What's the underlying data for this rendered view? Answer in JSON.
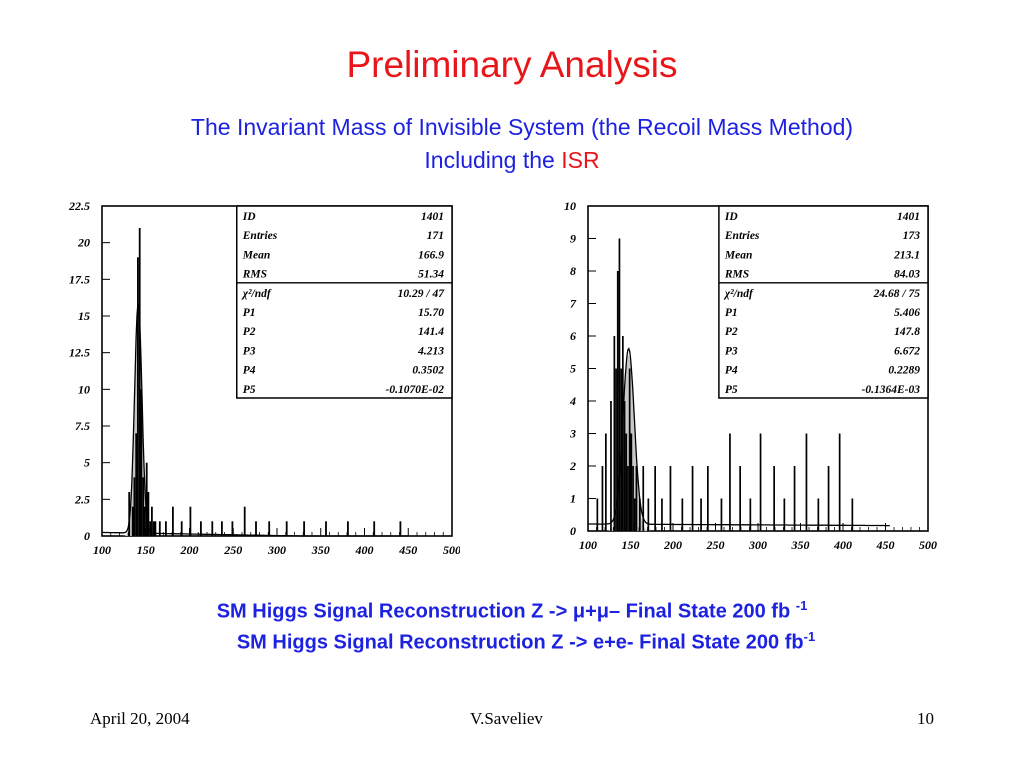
{
  "slide": {
    "title": "Preliminary Analysis",
    "subtitle_line1": "The Invariant Mass of Invisible System (the Recoil Mass Method)",
    "subtitle_line2_prefix": "Including the ",
    "subtitle_line2_highlight": "ISR",
    "caption1_prefix": "SM Higgs Signal Reconstruction Z -> ",
    "caption1_mumu": "μ+μ–",
    "caption1_suffix": " Final State 200 fb ",
    "caption1_sup": "-1",
    "caption2_prefix": "SM Higgs Signal Reconstruction Z -> e+e- Final State 200 fb",
    "caption2_sup": "-1",
    "footer_date": "April 20, 2004",
    "footer_author": "V.Saveliev",
    "footer_page": "10"
  },
  "colors": {
    "title": "#e8161b",
    "subtitle": "#1d22e0",
    "fill": "#c8c8c8",
    "line": "#000000"
  },
  "chart_data": [
    {
      "type": "bar",
      "xlim": [
        100,
        500
      ],
      "ylim": [
        0,
        22.5
      ],
      "xticks": [
        "100",
        "150",
        "200",
        "250",
        "300",
        "350",
        "400",
        "450",
        "500"
      ],
      "yticks": [
        "0",
        "2.5",
        "5",
        "7.5",
        "10",
        "12.5",
        "15",
        "17.5",
        "20",
        "22.5"
      ],
      "stats": [
        {
          "label": "ID",
          "value": "1401"
        },
        {
          "label": "Entries",
          "value": "171"
        },
        {
          "label": "Mean",
          "value": "166.9"
        },
        {
          "label": "RMS",
          "value": "51.34"
        },
        {
          "label": "χ²/ndf",
          "value": "10.29  /  47"
        },
        {
          "label": "P1",
          "value": "15.70"
        },
        {
          "label": "P2",
          "value": "141.4"
        },
        {
          "label": "P3",
          "value": "4.213"
        },
        {
          "label": "P4",
          "value": "0.3502"
        },
        {
          "label": "P5",
          "value": "-0.1070E-02"
        }
      ],
      "fit": {
        "amp": 15.7,
        "mean": 141.4,
        "sigma": 4.213,
        "c0": 0.3502,
        "c1": -0.00107,
        "xmax": 450
      },
      "hist": [
        [
          130,
          3
        ],
        [
          134,
          2
        ],
        [
          136,
          4
        ],
        [
          138,
          7
        ],
        [
          140,
          19
        ],
        [
          142,
          21
        ],
        [
          144,
          10
        ],
        [
          146,
          4
        ],
        [
          148,
          2
        ],
        [
          150,
          5
        ],
        [
          152,
          3
        ],
        [
          154,
          1
        ],
        [
          156,
          2
        ],
        [
          158,
          1
        ],
        [
          160,
          1
        ],
        [
          165,
          1
        ],
        [
          172,
          1
        ],
        [
          180,
          2
        ],
        [
          190,
          1
        ],
        [
          200,
          2
        ],
        [
          212,
          1
        ],
        [
          225,
          1
        ],
        [
          236,
          1
        ],
        [
          248,
          1
        ],
        [
          262,
          2
        ],
        [
          275,
          1
        ],
        [
          290,
          1
        ],
        [
          310,
          1
        ],
        [
          330,
          1
        ],
        [
          355,
          1
        ],
        [
          380,
          1
        ],
        [
          410,
          1
        ],
        [
          440,
          1
        ]
      ]
    },
    {
      "type": "bar",
      "xlim": [
        100,
        500
      ],
      "ylim": [
        0,
        10
      ],
      "xticks": [
        "100",
        "150",
        "200",
        "250",
        "300",
        "350",
        "400",
        "450",
        "500"
      ],
      "yticks": [
        "0",
        "1",
        "2",
        "3",
        "4",
        "5",
        "6",
        "7",
        "8",
        "9",
        "10"
      ],
      "stats": [
        {
          "label": "ID",
          "value": "1401"
        },
        {
          "label": "Entries",
          "value": "173"
        },
        {
          "label": "Mean",
          "value": "213.1"
        },
        {
          "label": "RMS",
          "value": "84.03"
        },
        {
          "label": "χ²/ndf",
          "value": "24.68  /  75"
        },
        {
          "label": "P1",
          "value": "5.406"
        },
        {
          "label": "P2",
          "value": "147.8"
        },
        {
          "label": "P3",
          "value": "6.672"
        },
        {
          "label": "P4",
          "value": "0.2289"
        },
        {
          "label": "P5",
          "value": "-0.1364E-03"
        }
      ],
      "fit": {
        "amp": 5.406,
        "mean": 147.8,
        "sigma": 6.672,
        "c0": 0.2289,
        "c1": -0.0001364,
        "xmax": 455
      },
      "hist": [
        [
          110,
          1
        ],
        [
          116,
          2
        ],
        [
          120,
          3
        ],
        [
          126,
          4
        ],
        [
          130,
          6
        ],
        [
          132,
          5
        ],
        [
          134,
          8
        ],
        [
          136,
          9
        ],
        [
          138,
          5
        ],
        [
          140,
          6
        ],
        [
          142,
          4
        ],
        [
          144,
          3
        ],
        [
          146,
          2
        ],
        [
          148,
          5
        ],
        [
          150,
          3
        ],
        [
          152,
          2
        ],
        [
          154,
          1
        ],
        [
          156,
          2
        ],
        [
          160,
          1
        ],
        [
          164,
          2
        ],
        [
          170,
          1
        ],
        [
          178,
          2
        ],
        [
          186,
          1
        ],
        [
          196,
          2
        ],
        [
          210,
          1
        ],
        [
          222,
          2
        ],
        [
          232,
          1
        ],
        [
          240,
          2
        ],
        [
          256,
          1
        ],
        [
          266,
          3
        ],
        [
          278,
          2
        ],
        [
          290,
          1
        ],
        [
          302,
          3
        ],
        [
          318,
          2
        ],
        [
          330,
          1
        ],
        [
          342,
          2
        ],
        [
          356,
          3
        ],
        [
          370,
          1
        ],
        [
          382,
          2
        ],
        [
          395,
          3
        ],
        [
          410,
          1
        ]
      ]
    }
  ]
}
